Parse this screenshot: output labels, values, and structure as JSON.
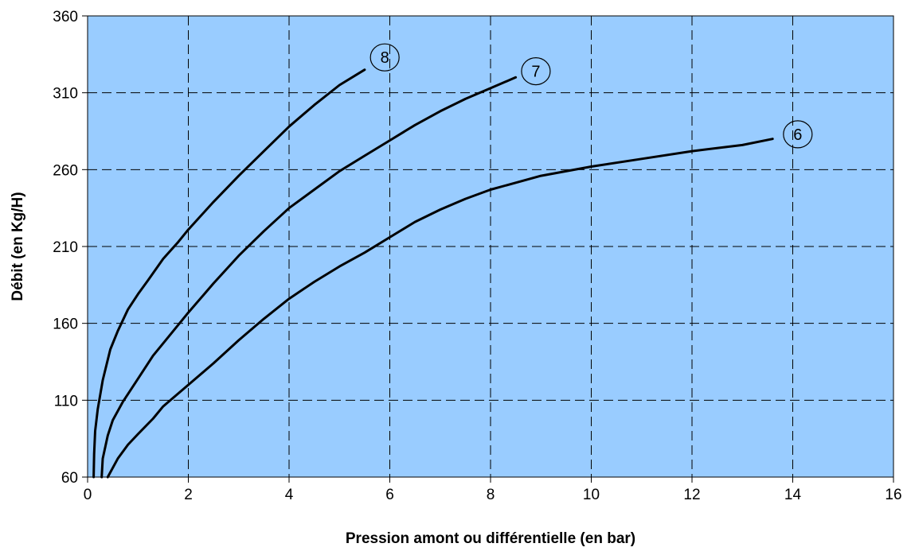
{
  "chart_data": {
    "type": "line",
    "title": "",
    "xlabel": "Pression amont ou différentielle (en bar)",
    "ylabel": "Débit (en Kg/H)",
    "xlim": [
      0,
      16
    ],
    "ylim": [
      60,
      360
    ],
    "x_ticks": [
      0,
      2,
      4,
      6,
      8,
      10,
      12,
      14,
      16
    ],
    "y_ticks": [
      60,
      110,
      160,
      210,
      260,
      310,
      360
    ],
    "x_tick_labels": [
      "0",
      "2",
      "4",
      "6",
      "8",
      "10",
      "12",
      "14",
      "16"
    ],
    "y_tick_labels": [
      "60",
      "110",
      "160",
      "210",
      "260",
      "310",
      "360"
    ],
    "grid": true,
    "colors": {
      "plot_background": "#99CCFF",
      "line": "#000000",
      "grid": "#000000"
    },
    "series": [
      {
        "name": "8",
        "x": [
          0.12,
          0.13,
          0.15,
          0.2,
          0.3,
          0.45,
          0.6,
          0.8,
          1.0,
          1.2,
          1.5,
          1.8,
          2.0,
          2.5,
          3.0,
          3.5,
          4.0,
          4.5,
          5.0,
          5.5
        ],
        "y": [
          60,
          75,
          90,
          104,
          123,
          143,
          155,
          169,
          179,
          188,
          202,
          213,
          221,
          239,
          256,
          272,
          288,
          302,
          315,
          325
        ]
      },
      {
        "name": "7",
        "x": [
          0.28,
          0.3,
          0.4,
          0.5,
          0.7,
          1.0,
          1.3,
          1.5,
          2.0,
          2.5,
          3.0,
          3.5,
          4.0,
          4.5,
          5.0,
          5.5,
          6.0,
          6.5,
          7.0,
          7.5,
          8.0,
          8.5
        ],
        "y": [
          60,
          72,
          87,
          97,
          109,
          124,
          139,
          147,
          167,
          186,
          204,
          220,
          235,
          247,
          259,
          269,
          279,
          289,
          298,
          306,
          313,
          320
        ]
      },
      {
        "name": "6",
        "x": [
          0.4,
          0.6,
          0.8,
          1.0,
          1.3,
          1.5,
          2.0,
          2.5,
          3.0,
          3.5,
          4.0,
          4.5,
          5.0,
          5.5,
          6.0,
          6.5,
          7.0,
          7.5,
          8.0,
          9.0,
          10.0,
          11.0,
          12.0,
          13.0,
          13.6
        ],
        "y": [
          60,
          72,
          81,
          88,
          98,
          106,
          120,
          134,
          149,
          163,
          176,
          187,
          197,
          206,
          216,
          226,
          234,
          241,
          247,
          256,
          262,
          267,
          272,
          276,
          280
        ]
      }
    ],
    "curve_labels": [
      {
        "text": "8",
        "x": 5.9,
        "y": 333
      },
      {
        "text": "7",
        "x": 8.9,
        "y": 324
      },
      {
        "text": "6",
        "x": 14.1,
        "y": 283
      }
    ]
  }
}
